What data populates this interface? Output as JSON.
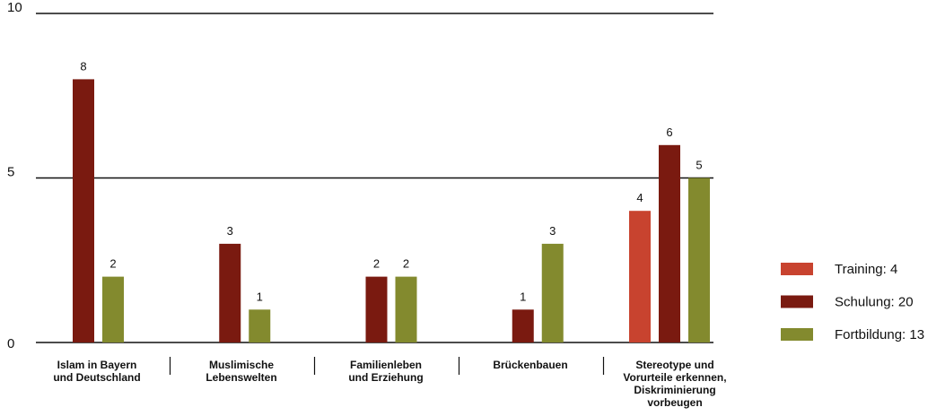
{
  "chart_data": {
    "type": "bar",
    "categories": [
      "Islam in Bayern\nund Deutschland",
      "Muslimische\nLebenswelten",
      "Familienleben\nund Erziehung",
      "Brückenbauen",
      "Stereotype und\nVorurteile erkennen,\nDiskriminierung\nvorbeugen"
    ],
    "series": [
      {
        "name": "Training: 4",
        "color": "#c8432f",
        "values": [
          0,
          0,
          0,
          0,
          4
        ]
      },
      {
        "name": "Schulung: 20",
        "color": "#7a1a10",
        "values": [
          8,
          3,
          2,
          1,
          6
        ]
      },
      {
        "name": "Fortbildung: 13",
        "color": "#838a2e",
        "values": [
          2,
          1,
          2,
          3,
          5
        ]
      }
    ],
    "ylim": [
      0,
      10
    ],
    "yticks": [
      0,
      5,
      10
    ],
    "grid": true,
    "legend": "right"
  }
}
